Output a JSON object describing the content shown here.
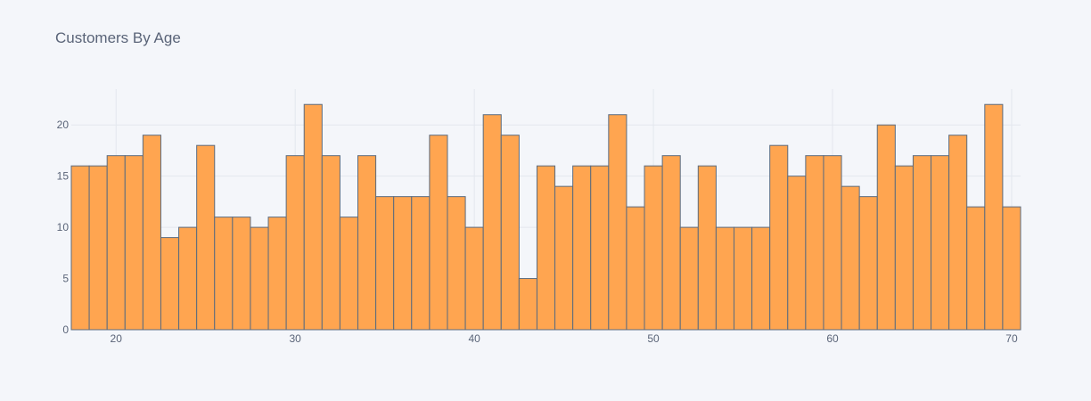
{
  "chart_data": {
    "type": "bar",
    "title": "Customers By Age",
    "xlabel": "",
    "ylabel": "",
    "bin_width": 1,
    "bin_start": 18,
    "xlim": [
      17.5,
      70.5
    ],
    "ylim": [
      0,
      23.5
    ],
    "x_ticks": [
      20,
      30,
      40,
      50,
      60,
      70
    ],
    "y_ticks": [
      0,
      5,
      10,
      15,
      20
    ],
    "bar_color": "#ffa550",
    "bar_outline_color": "#5b6b7e",
    "grid": true,
    "legend": "none",
    "categories": [
      18,
      19,
      20,
      21,
      22,
      23,
      24,
      25,
      26,
      27,
      28,
      29,
      30,
      31,
      32,
      33,
      34,
      35,
      36,
      37,
      38,
      39,
      40,
      41,
      42,
      43,
      44,
      45,
      46,
      47,
      48,
      49,
      50,
      51,
      52,
      53,
      54,
      55,
      56,
      57,
      58,
      59,
      60,
      61,
      62,
      63,
      64,
      65,
      66,
      67,
      68,
      69,
      70
    ],
    "values": [
      16,
      16,
      17,
      17,
      19,
      9,
      10,
      18,
      11,
      11,
      10,
      11,
      17,
      22,
      17,
      11,
      17,
      13,
      13,
      13,
      19,
      13,
      10,
      21,
      19,
      5,
      16,
      14,
      16,
      16,
      21,
      12,
      16,
      17,
      10,
      16,
      10,
      10,
      10,
      18,
      15,
      17,
      17,
      14,
      13,
      20,
      16,
      17,
      17,
      19,
      12,
      22,
      12
    ]
  }
}
